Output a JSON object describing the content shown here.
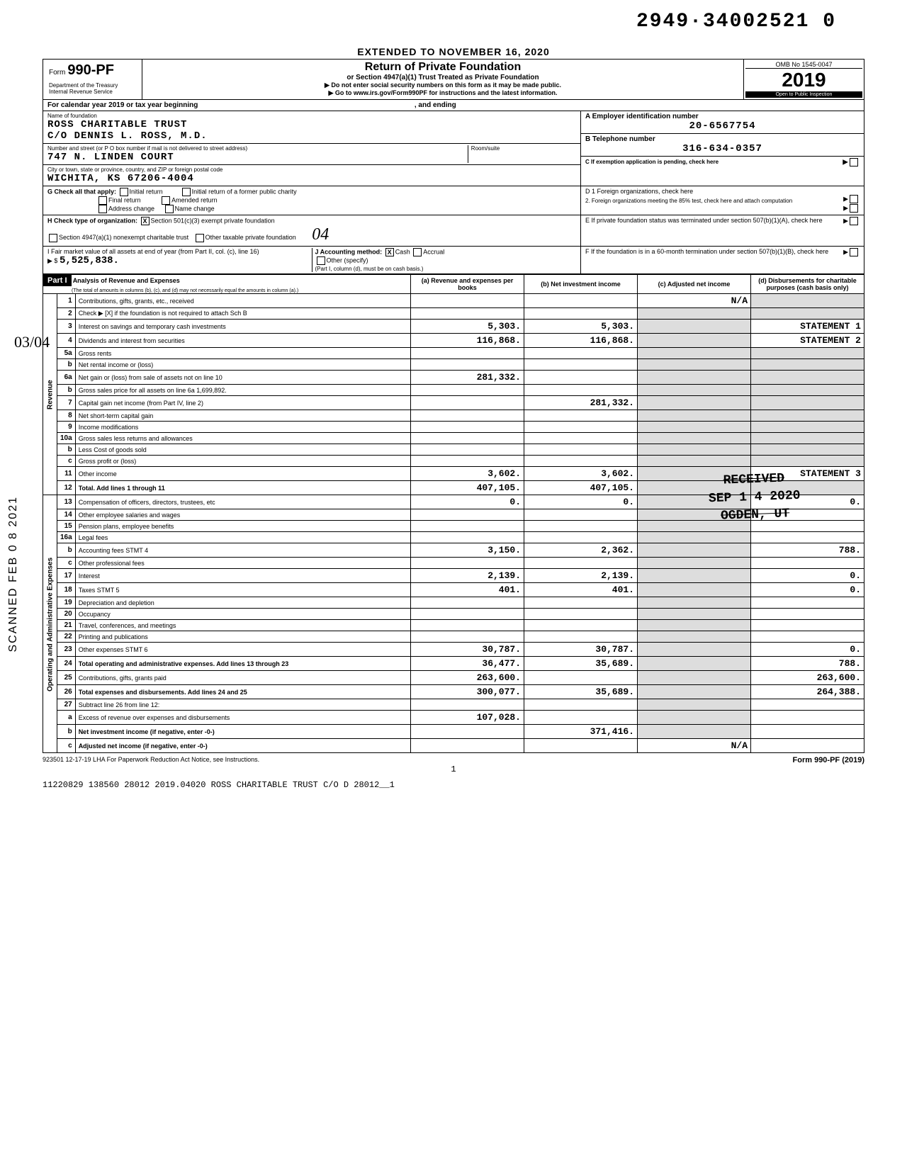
{
  "handwritten_top": "2949·34002521  0",
  "extended": "EXTENDED TO NOVEMBER 16, 2020",
  "form": {
    "prefix": "Form",
    "number": "990-PF",
    "dept": "Department of the Treasury\nInternal Revenue Service"
  },
  "header_center": {
    "title": "Return of Private Foundation",
    "subtitle": "or Section 4947(a)(1) Trust Treated as Private Foundation",
    "line1": "▶ Do not enter social security numbers on this form as it may be made public.",
    "line2": "▶ Go to www.irs.gov/Form990PF for instructions and the latest information."
  },
  "header_right": {
    "omb": "OMB No  1545-0047",
    "year": "2019",
    "inspect": "Open to Public Inspection"
  },
  "cal_year": "For calendar year 2019 or tax year beginning",
  "cal_year_end": ", and ending",
  "name_label": "Name of foundation",
  "name1": "ROSS CHARITABLE TRUST",
  "name2": "C/O DENNIS L. ROSS, M.D.",
  "addr_label": "Number and street (or P O  box number if mail is not delivered to street address)",
  "room_label": "Room/suite",
  "addr": "747 N. LINDEN COURT",
  "city_label": "City or town, state or province, country, and ZIP or foreign postal code",
  "city": "WICHITA, KS   67206-4004",
  "A_label": "A  Employer identification number",
  "A_val": "20-6567754",
  "B_label": "B  Telephone number",
  "B_val": "316-634-0357",
  "C_label": "C  If exemption application is pending, check here",
  "G_label": "G  Check all that apply:",
  "G_opts": [
    "Initial return",
    "Final return",
    "Address change",
    "Initial return of a former public charity",
    "Amended return",
    "Name change"
  ],
  "D1": "D  1  Foreign organizations, check here",
  "D2": "2. Foreign organizations meeting the 85% test, check here and attach computation",
  "H_label": "H  Check type of organization:",
  "H_opt1": "Section 501(c)(3) exempt private foundation",
  "H_opt2": "Section 4947(a)(1) nonexempt charitable trust",
  "H_opt3": "Other taxable private foundation",
  "H_hand": "04",
  "E_label": "E  If private foundation status was terminated under section 507(b)(1)(A), check here",
  "I_label": "I  Fair market value of all assets at end of year (from Part II, col. (c), line 16)",
  "I_val": "5,525,838.",
  "J_label": "J  Accounting method:",
  "J_cash": "Cash",
  "J_accrual": "Accrual",
  "J_other": "Other (specify)",
  "J_note": "(Part I, column (d), must be on cash basis.)",
  "F_label": "F  If the foundation is in a 60-month termination under section 507(b)(1)(B), check here",
  "part1_label": "Part I",
  "part1_title": "Analysis of Revenue and Expenses",
  "part1_sub": "(The total of amounts in columns (b), (c), and (d) may not necessarily equal the amounts in column (a).)",
  "col_headers": {
    "a": "(a) Revenue and expenses per books",
    "b": "(b) Net investment income",
    "c": "(c) Adjusted net income",
    "d": "(d) Disbursements for charitable purposes (cash basis only)"
  },
  "rows": [
    {
      "n": "1",
      "label": "Contributions, gifts, grants, etc., received",
      "a": "",
      "b": "",
      "c": "N/A",
      "d": ""
    },
    {
      "n": "2",
      "label": "Check ▶ [X] if the foundation is not required to attach Sch  B",
      "a": "",
      "b": "",
      "c": "",
      "d": ""
    },
    {
      "n": "3",
      "label": "Interest on savings and temporary cash investments",
      "a": "5,303.",
      "b": "5,303.",
      "c": "",
      "d": "STATEMENT  1"
    },
    {
      "n": "4",
      "label": "Dividends and interest from securities",
      "a": "116,868.",
      "b": "116,868.",
      "c": "",
      "d": "STATEMENT  2"
    },
    {
      "n": "5a",
      "label": "Gross rents",
      "a": "",
      "b": "",
      "c": "",
      "d": ""
    },
    {
      "n": "b",
      "label": "Net rental income or (loss)",
      "a": "",
      "b": "",
      "c": "",
      "d": ""
    },
    {
      "n": "6a",
      "label": "Net gain or (loss) from sale of assets not on line 10",
      "a": "281,332.",
      "b": "",
      "c": "",
      "d": ""
    },
    {
      "n": "b",
      "label": "Gross sales price for all assets on line 6a     1,699,892.",
      "a": "",
      "b": "",
      "c": "",
      "d": ""
    },
    {
      "n": "7",
      "label": "Capital gain net income (from Part IV, line 2)",
      "a": "",
      "b": "281,332.",
      "c": "",
      "d": ""
    },
    {
      "n": "8",
      "label": "Net short-term capital gain",
      "a": "",
      "b": "",
      "c": "",
      "d": ""
    },
    {
      "n": "9",
      "label": "Income modifications",
      "a": "",
      "b": "",
      "c": "",
      "d": ""
    },
    {
      "n": "10a",
      "label": "Gross sales less returns and allowances",
      "a": "",
      "b": "",
      "c": "",
      "d": ""
    },
    {
      "n": "b",
      "label": "Less  Cost of goods sold",
      "a": "",
      "b": "",
      "c": "",
      "d": ""
    },
    {
      "n": "c",
      "label": "Gross profit or (loss)",
      "a": "",
      "b": "",
      "c": "",
      "d": ""
    },
    {
      "n": "11",
      "label": "Other income",
      "a": "3,602.",
      "b": "3,602.",
      "c": "",
      "d": "STATEMENT  3"
    },
    {
      "n": "12",
      "label": "Total. Add lines 1 through 11",
      "a": "407,105.",
      "b": "407,105.",
      "c": "",
      "d": "",
      "bold": true
    },
    {
      "n": "13",
      "label": "Compensation of officers, directors, trustees, etc",
      "a": "0.",
      "b": "0.",
      "c": "",
      "d": "0."
    },
    {
      "n": "14",
      "label": "Other employee salaries and wages",
      "a": "",
      "b": "",
      "c": "",
      "d": ""
    },
    {
      "n": "15",
      "label": "Pension plans, employee benefits",
      "a": "",
      "b": "",
      "c": "",
      "d": ""
    },
    {
      "n": "16a",
      "label": "Legal fees",
      "a": "",
      "b": "",
      "c": "",
      "d": ""
    },
    {
      "n": "b",
      "label": "Accounting fees              STMT  4",
      "a": "3,150.",
      "b": "2,362.",
      "c": "",
      "d": "788."
    },
    {
      "n": "c",
      "label": "Other professional fees",
      "a": "",
      "b": "",
      "c": "",
      "d": ""
    },
    {
      "n": "17",
      "label": "Interest",
      "a": "2,139.",
      "b": "2,139.",
      "c": "",
      "d": "0."
    },
    {
      "n": "18",
      "label": "Taxes                        STMT  5",
      "a": "401.",
      "b": "401.",
      "c": "",
      "d": "0."
    },
    {
      "n": "19",
      "label": "Depreciation and depletion",
      "a": "",
      "b": "",
      "c": "",
      "d": ""
    },
    {
      "n": "20",
      "label": "Occupancy",
      "a": "",
      "b": "",
      "c": "",
      "d": ""
    },
    {
      "n": "21",
      "label": "Travel, conferences, and meetings",
      "a": "",
      "b": "",
      "c": "",
      "d": ""
    },
    {
      "n": "22",
      "label": "Printing and publications",
      "a": "",
      "b": "",
      "c": "",
      "d": ""
    },
    {
      "n": "23",
      "label": "Other expenses               STMT  6",
      "a": "30,787.",
      "b": "30,787.",
      "c": "",
      "d": "0."
    },
    {
      "n": "24",
      "label": "Total operating and administrative expenses. Add lines 13 through 23",
      "a": "36,477.",
      "b": "35,689.",
      "c": "",
      "d": "788.",
      "bold": true
    },
    {
      "n": "25",
      "label": "Contributions, gifts, grants paid",
      "a": "263,600.",
      "b": "",
      "c": "",
      "d": "263,600."
    },
    {
      "n": "26",
      "label": "Total expenses and disbursements. Add lines 24 and 25",
      "a": "300,077.",
      "b": "35,689.",
      "c": "",
      "d": "264,388.",
      "bold": true
    },
    {
      "n": "27",
      "label": "Subtract line 26 from line 12:",
      "a": "",
      "b": "",
      "c": "",
      "d": ""
    },
    {
      "n": "a",
      "label": "Excess of revenue over expenses and disbursements",
      "a": "107,028.",
      "b": "",
      "c": "",
      "d": ""
    },
    {
      "n": "b",
      "label": "Net investment income (if negative, enter -0-)",
      "a": "",
      "b": "371,416.",
      "c": "",
      "d": "",
      "bold": true
    },
    {
      "n": "c",
      "label": "Adjusted net income (if negative, enter -0-)",
      "a": "",
      "b": "",
      "c": "N/A",
      "d": "",
      "bold": true
    }
  ],
  "side_rev": "Revenue",
  "side_exp": "Operating and Administrative Expenses",
  "received": {
    "line1": "RECEIVED",
    "line2": "SEP 1 4 2020",
    "line3": "OGDEN, UT"
  },
  "footer_left": "923501  12-17-19   LHA   For Paperwork Reduction Act Notice, see Instructions.",
  "footer_right": "Form 990-PF (2019)",
  "page_num": "1",
  "bottom": "11220829 138560 28012          2019.04020 ROSS CHARITABLE TRUST C/O D 28012__1",
  "left_margin": "SCANNED FEB 0 8 2021",
  "hand_margin": "03/04"
}
